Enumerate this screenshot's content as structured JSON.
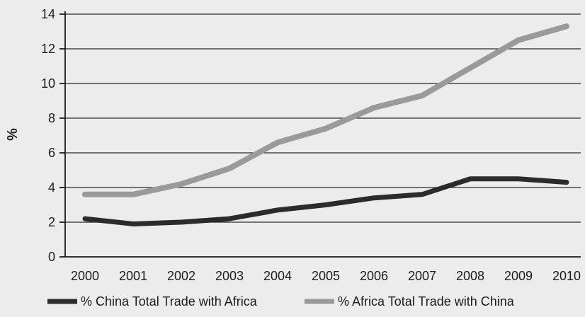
{
  "chart_data": {
    "type": "line",
    "title": "",
    "xlabel": "",
    "ylabel": "%",
    "categories": [
      "2000",
      "2001",
      "2002",
      "2003",
      "2004",
      "2005",
      "2006",
      "2007",
      "2008",
      "2009",
      "2010"
    ],
    "ylim": [
      0,
      14
    ],
    "yticks": [
      "0",
      "2",
      "4",
      "6",
      "8",
      "10",
      "12",
      "14"
    ],
    "grid": true,
    "legend_position": "bottom",
    "series": [
      {
        "name": "% China Total Trade with Africa",
        "color": "#2b2b2b",
        "values": [
          2.2,
          1.9,
          2.0,
          2.2,
          2.7,
          3.0,
          3.4,
          3.6,
          4.5,
          4.5,
          4.3
        ]
      },
      {
        "name": "% Africa Total Trade with China",
        "color": "#9a9a9a",
        "values": [
          3.6,
          3.6,
          4.2,
          5.1,
          6.6,
          7.4,
          8.6,
          9.3,
          10.9,
          12.5,
          13.3
        ]
      }
    ]
  }
}
